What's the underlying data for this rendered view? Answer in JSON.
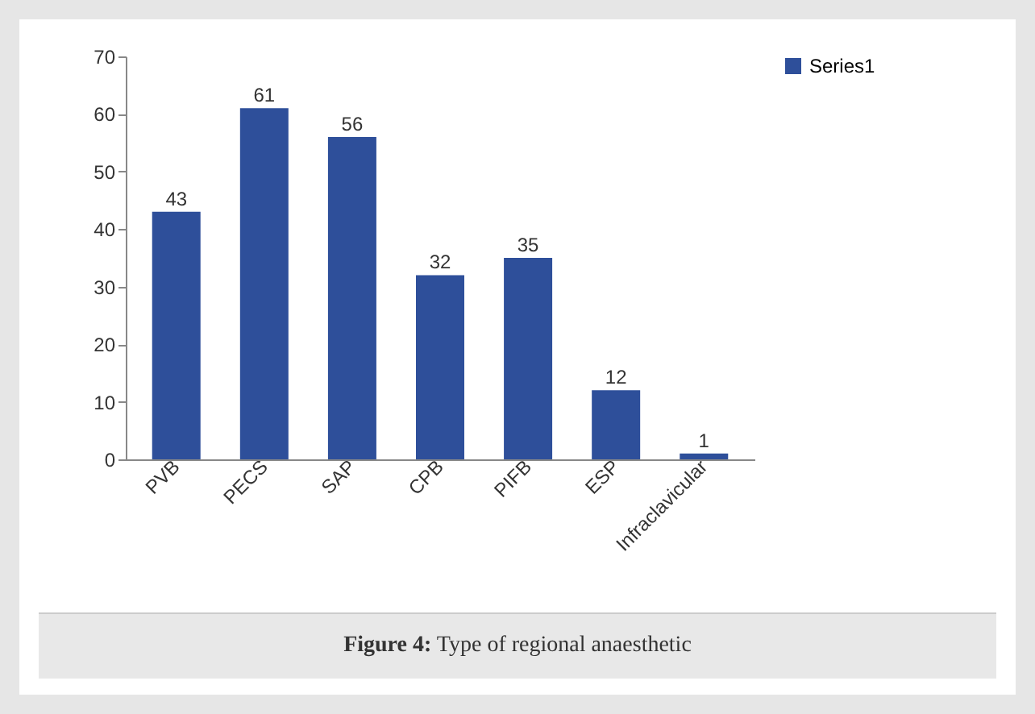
{
  "chart_data": {
    "type": "bar",
    "categories": [
      "PVB",
      "PECS",
      "SAP",
      "CPB",
      "PIFB",
      "ESP",
      "Infraclavicular"
    ],
    "series": [
      {
        "name": "Series1",
        "color": "#2e4f9a",
        "values": [
          43,
          61,
          56,
          32,
          35,
          12,
          1
        ]
      }
    ],
    "ylim": [
      0,
      70
    ],
    "yticks": [
      0,
      10,
      20,
      30,
      40,
      50,
      60,
      70
    ],
    "grid": false,
    "legend": "right",
    "data_labels": true,
    "annotations": [
      "Figure 4: Type of regional anaesthetic"
    ]
  }
}
